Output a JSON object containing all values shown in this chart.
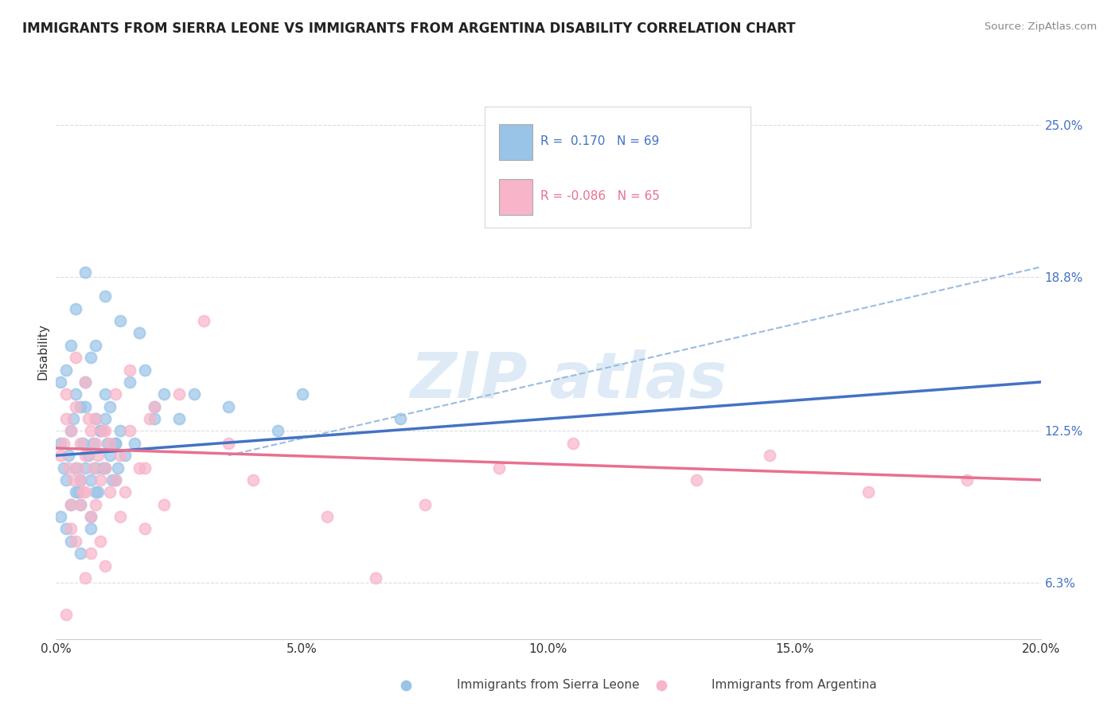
{
  "title": "IMMIGRANTS FROM SIERRA LEONE VS IMMIGRANTS FROM ARGENTINA DISABILITY CORRELATION CHART",
  "source": "Source: ZipAtlas.com",
  "ylabel": "Disability",
  "x_tick_labels": [
    "0.0%",
    "5.0%",
    "10.0%",
    "15.0%",
    "20.0%"
  ],
  "x_tick_values": [
    0.0,
    5.0,
    10.0,
    15.0,
    20.0
  ],
  "y_tick_labels": [
    "6.3%",
    "12.5%",
    "18.8%",
    "25.0%"
  ],
  "y_tick_values": [
    6.3,
    12.5,
    18.8,
    25.0
  ],
  "xlim": [
    0.0,
    20.0
  ],
  "ylim": [
    4.0,
    27.5
  ],
  "sierra_leone_color": "#99c4e8",
  "argentina_color": "#f8b4c8",
  "sierra_leone_line_color": "#4472c4",
  "argentina_line_color": "#e87090",
  "dash_line_color": "#99bce0",
  "sl_trend_x0": 0.0,
  "sl_trend_y0": 11.5,
  "sl_trend_x1": 20.0,
  "sl_trend_y1": 14.5,
  "arg_trend_x0": 0.0,
  "arg_trend_y0": 11.8,
  "arg_trend_x1": 20.0,
  "arg_trend_y1": 10.5,
  "dash_x0": 3.5,
  "dash_y0": 11.5,
  "dash_x1": 20.0,
  "dash_y1": 19.2,
  "sierra_leone_x": [
    0.1,
    0.15,
    0.2,
    0.25,
    0.3,
    0.35,
    0.4,
    0.45,
    0.5,
    0.55,
    0.6,
    0.65,
    0.7,
    0.75,
    0.8,
    0.85,
    0.9,
    0.95,
    1.0,
    1.05,
    1.1,
    1.15,
    1.2,
    1.25,
    1.3,
    0.1,
    0.2,
    0.3,
    0.4,
    0.5,
    0.6,
    0.7,
    0.8,
    0.9,
    1.0,
    1.1,
    1.2,
    1.5,
    1.8,
    2.0,
    2.2,
    2.5,
    0.1,
    0.2,
    0.3,
    0.4,
    0.5,
    0.6,
    0.7,
    0.8,
    1.0,
    1.2,
    1.4,
    1.6,
    2.0,
    2.8,
    3.5,
    0.3,
    0.5,
    0.7,
    4.5,
    5.0,
    7.0,
    0.4,
    0.6,
    0.8,
    1.0,
    1.3,
    1.7
  ],
  "sierra_leone_y": [
    12.0,
    11.0,
    10.5,
    11.5,
    12.5,
    13.0,
    11.0,
    10.0,
    9.5,
    12.0,
    13.5,
    11.5,
    10.5,
    12.0,
    11.0,
    10.0,
    12.5,
    11.0,
    13.0,
    12.0,
    11.5,
    10.5,
    12.0,
    11.0,
    12.5,
    14.5,
    15.0,
    16.0,
    14.0,
    13.5,
    14.5,
    15.5,
    13.0,
    12.5,
    14.0,
    13.5,
    12.0,
    14.5,
    15.0,
    13.5,
    14.0,
    13.0,
    9.0,
    8.5,
    9.5,
    10.0,
    10.5,
    11.0,
    9.0,
    10.0,
    11.0,
    10.5,
    11.5,
    12.0,
    13.0,
    14.0,
    13.5,
    8.0,
    7.5,
    8.5,
    12.5,
    14.0,
    13.0,
    17.5,
    19.0,
    16.0,
    18.0,
    17.0,
    16.5
  ],
  "argentina_x": [
    0.1,
    0.15,
    0.2,
    0.25,
    0.3,
    0.35,
    0.4,
    0.45,
    0.5,
    0.55,
    0.6,
    0.65,
    0.7,
    0.75,
    0.8,
    0.85,
    0.9,
    0.95,
    1.0,
    1.1,
    1.2,
    1.3,
    1.5,
    1.7,
    1.9,
    0.2,
    0.4,
    0.6,
    0.8,
    1.0,
    1.2,
    1.5,
    2.0,
    2.5,
    3.0,
    0.3,
    0.5,
    0.7,
    4.0,
    5.5,
    6.5,
    7.5,
    9.0,
    10.5,
    13.0,
    14.5,
    16.5,
    18.5,
    3.5,
    0.4,
    0.6,
    0.8,
    1.4,
    1.8,
    2.2,
    0.3,
    0.5,
    0.7,
    0.9,
    1.1,
    1.3,
    0.2,
    0.6,
    1.0,
    1.8
  ],
  "argentina_y": [
    11.5,
    12.0,
    13.0,
    11.0,
    12.5,
    10.5,
    13.5,
    11.0,
    12.0,
    10.0,
    11.5,
    13.0,
    12.5,
    11.0,
    12.0,
    11.5,
    10.5,
    12.5,
    11.0,
    12.0,
    10.5,
    11.5,
    12.5,
    11.0,
    13.0,
    14.0,
    15.5,
    14.5,
    13.0,
    12.5,
    14.0,
    15.0,
    13.5,
    14.0,
    17.0,
    9.5,
    10.5,
    9.0,
    10.5,
    9.0,
    6.5,
    9.5,
    11.0,
    12.0,
    10.5,
    11.5,
    10.0,
    10.5,
    12.0,
    8.0,
    10.0,
    9.5,
    10.0,
    11.0,
    9.5,
    8.5,
    9.5,
    7.5,
    8.0,
    10.0,
    9.0,
    5.0,
    6.5,
    7.0,
    8.5
  ]
}
